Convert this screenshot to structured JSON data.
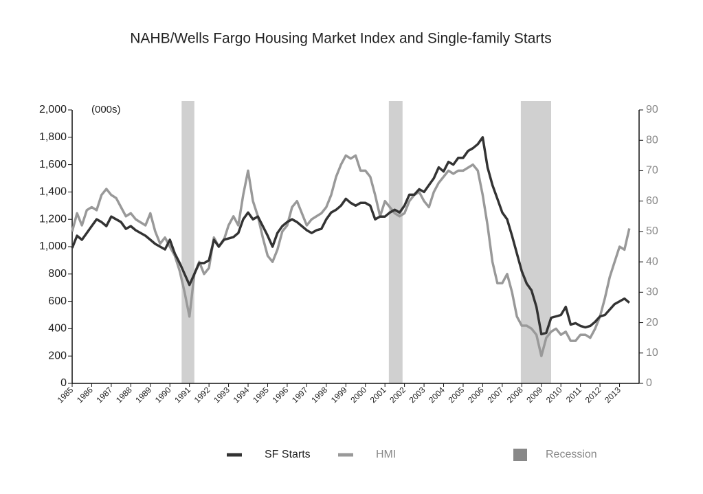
{
  "chart_data": {
    "type": "line",
    "title": "NAHB/Wells Fargo Housing Market Index and Single-family Starts",
    "y_unit_label": "(000s)",
    "x": [
      1985,
      1985.25,
      1985.5,
      1985.75,
      1986,
      1986.25,
      1986.5,
      1986.75,
      1987,
      1987.25,
      1987.5,
      1987.75,
      1988,
      1988.25,
      1988.5,
      1988.75,
      1989,
      1989.25,
      1989.5,
      1989.75,
      1990,
      1990.25,
      1990.5,
      1990.75,
      1991,
      1991.25,
      1991.5,
      1991.75,
      1992,
      1992.25,
      1992.5,
      1992.75,
      1993,
      1993.25,
      1993.5,
      1993.75,
      1994,
      1994.25,
      1994.5,
      1994.75,
      1995,
      1995.25,
      1995.5,
      1995.75,
      1996,
      1996.25,
      1996.5,
      1996.75,
      1997,
      1997.25,
      1997.5,
      1997.75,
      1998,
      1998.25,
      1998.5,
      1998.75,
      1999,
      1999.25,
      1999.5,
      1999.75,
      2000,
      2000.25,
      2000.5,
      2000.75,
      2001,
      2001.25,
      2001.5,
      2001.75,
      2002,
      2002.25,
      2002.5,
      2002.75,
      2003,
      2003.25,
      2003.5,
      2003.75,
      2004,
      2004.25,
      2004.5,
      2004.75,
      2005,
      2005.25,
      2005.5,
      2005.75,
      2006,
      2006.25,
      2006.5,
      2006.75,
      2007,
      2007.25,
      2007.5,
      2007.75,
      2008,
      2008.25,
      2008.5,
      2008.75,
      2009,
      2009.25,
      2009.5,
      2009.75,
      2010,
      2010.25,
      2010.5,
      2010.75,
      2011,
      2011.25,
      2011.5,
      2011.75,
      2012,
      2012.25,
      2012.5,
      2012.75,
      2013,
      2013.25,
      2013.5
    ],
    "series": [
      {
        "name": "SF Starts",
        "color": "#333333",
        "values": [
          990,
          1080,
          1050,
          1100,
          1150,
          1200,
          1180,
          1150,
          1220,
          1200,
          1180,
          1130,
          1150,
          1120,
          1100,
          1080,
          1050,
          1020,
          1000,
          980,
          1050,
          950,
          880,
          800,
          720,
          800,
          880,
          880,
          900,
          1050,
          1000,
          1050,
          1060,
          1070,
          1100,
          1200,
          1250,
          1200,
          1220,
          1150,
          1080,
          1000,
          1100,
          1150,
          1180,
          1200,
          1180,
          1150,
          1120,
          1100,
          1120,
          1130,
          1200,
          1250,
          1270,
          1300,
          1350,
          1320,
          1300,
          1320,
          1320,
          1300,
          1200,
          1220,
          1220,
          1250,
          1270,
          1250,
          1300,
          1380,
          1380,
          1420,
          1400,
          1450,
          1500,
          1580,
          1550,
          1620,
          1600,
          1650,
          1650,
          1700,
          1720,
          1750,
          1800,
          1580,
          1450,
          1350,
          1250,
          1200,
          1080,
          950,
          820,
          730,
          680,
          560,
          360,
          370,
          480,
          490,
          500,
          560,
          430,
          440,
          420,
          410,
          420,
          450,
          490,
          500,
          540,
          580,
          600,
          620,
          590
        ]
      },
      {
        "name": "HMI",
        "color": "#999999",
        "axis": "y2",
        "values": [
          50,
          56,
          52,
          57,
          58,
          57,
          62,
          64,
          62,
          61,
          58,
          55,
          56,
          54,
          53,
          52,
          56,
          50,
          46,
          48,
          45,
          42,
          37,
          30,
          22,
          36,
          40,
          36,
          38,
          48,
          45,
          47,
          52,
          55,
          52,
          62,
          70,
          60,
          55,
          48,
          42,
          40,
          44,
          50,
          52,
          58,
          60,
          56,
          52,
          54,
          55,
          56,
          58,
          62,
          68,
          72,
          75,
          74,
          75,
          70,
          70,
          68,
          62,
          55,
          60,
          58,
          56,
          55,
          56,
          60,
          62,
          63,
          60,
          58,
          63,
          66,
          68,
          70,
          69,
          70,
          70,
          71,
          72,
          70,
          62,
          52,
          40,
          33,
          33,
          36,
          30,
          22,
          19,
          19,
          18,
          16,
          9,
          15,
          17,
          18,
          16,
          17,
          14,
          14,
          16,
          16,
          15,
          18,
          22,
          28,
          35,
          40,
          45,
          44,
          51
        ]
      }
    ],
    "recession": {
      "name": "Recession",
      "color": "#d0d0d0",
      "periods": [
        [
          1990.6,
          1991.25
        ],
        [
          2001.2,
          2001.9
        ],
        [
          2007.95,
          2009.5
        ]
      ]
    },
    "xlim": [
      1985,
      2014
    ],
    "xticks": [
      1985,
      1986,
      1987,
      1988,
      1989,
      1990,
      1991,
      1992,
      1993,
      1994,
      1995,
      1996,
      1997,
      1998,
      1999,
      2000,
      2001,
      2002,
      2003,
      2004,
      2005,
      2006,
      2007,
      2008,
      2009,
      2010,
      2011,
      2012,
      2013
    ],
    "ylim": [
      0,
      2000
    ],
    "yticks": [
      0,
      200,
      400,
      600,
      800,
      {
        "value": 1000,
        "label": "1,000"
      },
      {
        "value": 1200,
        "label": "1,200"
      },
      {
        "value": 1400,
        "label": "1,400"
      },
      {
        "value": 1600,
        "label": "1,600"
      },
      {
        "value": 1800,
        "label": "1,800"
      },
      {
        "value": 2000,
        "label": "2,000"
      }
    ],
    "y2lim": [
      0,
      90
    ],
    "y2ticks": [
      0,
      10,
      20,
      30,
      40,
      50,
      60,
      70,
      80,
      90
    ],
    "legend": "bottom"
  }
}
